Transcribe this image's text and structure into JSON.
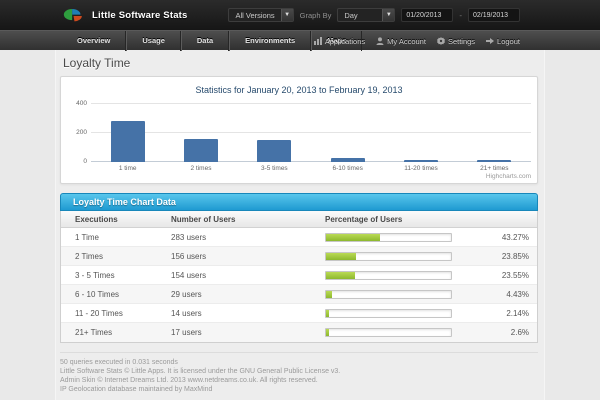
{
  "app": {
    "title": "Little Software Stats",
    "logo_icon": "pie-chart-logo"
  },
  "topbar": {
    "filters": {
      "versions_select": "All Versions",
      "graph_by_label": "Graph By",
      "graph_by_select": "Day",
      "date_from": "01/20/2013",
      "date_separator": "-",
      "date_to": "02/19/2013",
      "dropdown_arrow": "▼"
    }
  },
  "nav": {
    "items": [
      {
        "label": "Overview"
      },
      {
        "label": "Usage"
      },
      {
        "label": "Data"
      },
      {
        "label": "Environments"
      },
      {
        "label": "Maps"
      }
    ],
    "user_items": [
      {
        "label": "Applications",
        "icon": "bar-chart-icon"
      },
      {
        "label": "My Account",
        "icon": "user-icon"
      },
      {
        "label": "Settings",
        "icon": "gear-icon"
      },
      {
        "label": "Logout",
        "icon": "logout-arrow-icon"
      }
    ]
  },
  "page": {
    "title": "Loyalty Time"
  },
  "chart_data": {
    "type": "bar",
    "title": "Statistics for January 20, 2013 to February 19, 2013",
    "categories": [
      "1 time",
      "2 times",
      "3-5 times",
      "6-10 times",
      "11-20 times",
      "21+ times"
    ],
    "values": [
      283,
      156,
      154,
      29,
      14,
      17
    ],
    "xlabel": "",
    "ylabel": "",
    "ylim": [
      0,
      400
    ],
    "yticks": [
      0,
      200,
      400
    ],
    "grid": true,
    "legend": "none",
    "bar_color": "#4572a7",
    "watermark": "Highcharts.com"
  },
  "table": {
    "banner": "Loyalty Time Chart Data",
    "columns": [
      "Executions",
      "Number of Users",
      "Percentage of Users"
    ],
    "progress_color": "#9cc833",
    "rows": [
      {
        "executions": "1 Time",
        "users": "283 users",
        "percent": "43.27%",
        "percent_value": 43.27
      },
      {
        "executions": "2 Times",
        "users": "156 users",
        "percent": "23.85%",
        "percent_value": 23.85
      },
      {
        "executions": "3 - 5 Times",
        "users": "154 users",
        "percent": "23.55%",
        "percent_value": 23.55
      },
      {
        "executions": "6 - 10 Times",
        "users": "29 users",
        "percent": "4.43%",
        "percent_value": 4.43
      },
      {
        "executions": "11 - 20 Times",
        "users": "14 users",
        "percent": "2.14%",
        "percent_value": 2.14
      },
      {
        "executions": "21+ Times",
        "users": "17 users",
        "percent": "2.6%",
        "percent_value": 2.6
      }
    ]
  },
  "footer": {
    "lines": [
      "50 queries executed in 0.031 seconds",
      "Little Software Stats © Little Apps. It is licensed under the GNU General Public License v3.",
      "Admin Skin © Internet Dreams Ltd. 2013 www.netdreams.co.uk. All rights reserved.",
      "IP Geolocation database maintained by MaxMind"
    ]
  }
}
